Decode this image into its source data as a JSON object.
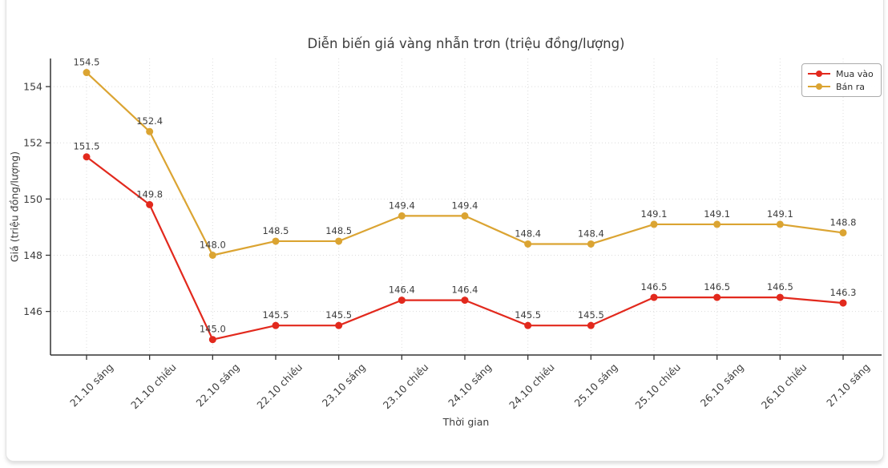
{
  "chart_data": {
    "type": "line",
    "title": "Diễn biến giá vàng nhẫn trơn (triệu đồng/lượng)",
    "xlabel": "Thời gian",
    "ylabel": "Giá (triệu đồng/lượng)",
    "categories": [
      "21.10 sáng",
      "21.10 chiều",
      "22.10 sáng",
      "22.10 chiều",
      "23.10 sáng",
      "23.10 chiều",
      "24.10 sáng",
      "24.10 chiều",
      "25.10 sáng",
      "25.10 chiều",
      "26.10 sáng",
      "26.10 chiều",
      "27.10 sáng"
    ],
    "series": [
      {
        "name": "Mua vào",
        "color": "#e2291d",
        "values": [
          151.5,
          149.8,
          145.0,
          145.5,
          145.5,
          146.4,
          146.4,
          145.5,
          145.5,
          146.5,
          146.5,
          146.5,
          146.3
        ]
      },
      {
        "name": "Bán ra",
        "color": "#dba432",
        "values": [
          154.5,
          152.4,
          148.0,
          148.5,
          148.5,
          149.4,
          149.4,
          148.4,
          148.4,
          149.1,
          149.1,
          149.1,
          148.8
        ]
      }
    ],
    "yticks": [
      146,
      148,
      150,
      152,
      154
    ],
    "ylim": [
      144.45,
      155.0
    ],
    "grid": true,
    "grid_style": "dotted",
    "legend_position": "upper right",
    "data_labels": true,
    "colors": {
      "grid": "#dcdcdc",
      "axis": "#343434",
      "text": "#3d3d3d"
    }
  }
}
